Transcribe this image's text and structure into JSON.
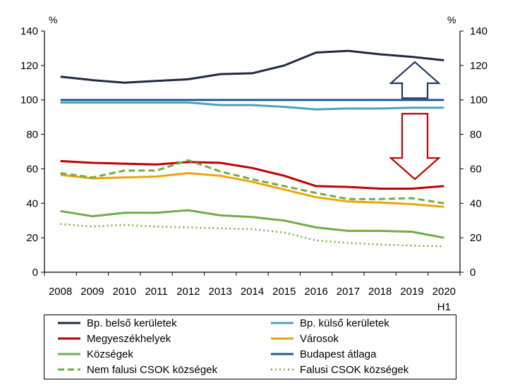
{
  "chart_data": {
    "type": "line",
    "title": "",
    "xlabel": "",
    "ylabel_left": "%",
    "ylabel_right": "%",
    "ylim": [
      0,
      140
    ],
    "yticks": [
      0,
      20,
      40,
      60,
      80,
      100,
      120,
      140
    ],
    "categories": [
      "2008",
      "2009",
      "2010",
      "2011",
      "2012",
      "2013",
      "2014",
      "2015",
      "2016",
      "2017",
      "2018",
      "2019",
      "2020"
    ],
    "last_category_suffix": "H1",
    "grid": false,
    "legend_position": "bottom",
    "series": [
      {
        "name": "Bp. belső kerületek",
        "color": "#1f2a44",
        "style": "solid",
        "values": [
          113.5,
          111.5,
          110,
          111,
          112,
          115,
          115.5,
          120,
          127.5,
          128.5,
          126.5,
          125,
          123
        ]
      },
      {
        "name": "Bp. külső kerületek",
        "color": "#4aa3b8",
        "style": "solid",
        "values": [
          98.5,
          98.5,
          98.5,
          98.5,
          98.5,
          97,
          97,
          96,
          94.5,
          95,
          95,
          95.5,
          95.5
        ]
      },
      {
        "name": "Megyeszékhelyek",
        "color": "#c00000",
        "style": "solid",
        "values": [
          64.5,
          63.5,
          63,
          62.5,
          64,
          63.5,
          60.5,
          56,
          50,
          49.5,
          48.5,
          48.5,
          50
        ]
      },
      {
        "name": "Városok",
        "color": "#f0a30a",
        "style": "solid",
        "values": [
          56.5,
          54.5,
          55,
          55.5,
          57.5,
          56,
          52.5,
          48,
          43.5,
          41,
          40.5,
          39.5,
          38
        ]
      },
      {
        "name": "Községek",
        "color": "#70ad47",
        "style": "solid",
        "values": [
          35.5,
          32.5,
          34.5,
          34.5,
          36,
          33,
          32,
          30,
          26,
          24,
          24,
          23.5,
          20
        ]
      },
      {
        "name": "Budapest átlaga",
        "color": "#1f5c99",
        "style": "solid",
        "values": [
          100,
          100,
          100,
          100,
          100,
          100,
          100,
          100,
          100,
          100,
          100,
          100,
          100
        ]
      },
      {
        "name": "Nem falusi CSOK községek",
        "color": "#70ad47",
        "style": "dashed",
        "values": [
          57.5,
          55,
          59,
          59,
          65,
          58.5,
          54,
          50,
          46,
          42.5,
          42.5,
          43,
          40
        ]
      },
      {
        "name": "Falusi CSOK községek",
        "color": "#70ad47",
        "style": "dotted",
        "values": [
          28,
          26.5,
          27.5,
          26.5,
          26,
          25.5,
          25,
          23,
          18.5,
          17,
          16,
          15.5,
          15
        ]
      }
    ],
    "annotations": [
      {
        "type": "arrow-up",
        "color": "#1f3864",
        "x_from": "2019",
        "y_from": 101,
        "y_to": 122
      },
      {
        "type": "arrow-down",
        "color": "#c00000",
        "x_from": "2019",
        "y_from": 92,
        "y_to": 54
      }
    ]
  }
}
